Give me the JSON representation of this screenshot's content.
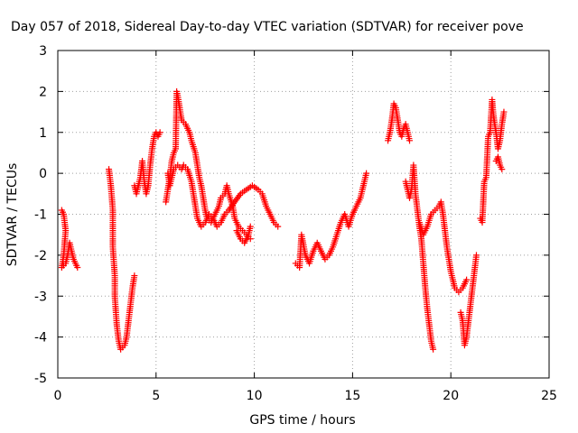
{
  "chart_data": {
    "type": "scatter",
    "title": "Day 057 of 2018, Sidereal Day-to-day VTEC variation (SDTVAR) for receiver pove",
    "xlabel": "GPS time / hours",
    "ylabel": "SDTVAR / TECUs",
    "xlim": [
      0,
      25
    ],
    "ylim": [
      -5,
      3
    ],
    "xticks": [
      0,
      5,
      10,
      15,
      20,
      25
    ],
    "yticks": [
      -5,
      -4,
      -3,
      -2,
      -1,
      0,
      1,
      2,
      3
    ],
    "grid": true,
    "marker": "+",
    "marker_color": "#ff0000",
    "segments": [
      [
        [
          0.2,
          -0.9
        ],
        [
          0.3,
          -1.0
        ],
        [
          0.4,
          -1.4
        ],
        [
          0.3,
          -2.0
        ],
        [
          0.2,
          -2.3
        ],
        [
          0.4,
          -2.2
        ],
        [
          0.5,
          -2.0
        ],
        [
          0.6,
          -1.7
        ],
        [
          0.7,
          -1.9
        ],
        [
          0.8,
          -2.1
        ],
        [
          0.9,
          -2.2
        ],
        [
          1.0,
          -2.3
        ]
      ],
      [
        [
          2.6,
          0.1
        ],
        [
          2.7,
          -0.3
        ],
        [
          2.8,
          -0.9
        ],
        [
          2.8,
          -1.8
        ],
        [
          2.9,
          -2.5
        ],
        [
          2.9,
          -3.0
        ],
        [
          3.0,
          -3.7
        ],
        [
          3.1,
          -4.1
        ],
        [
          3.2,
          -4.3
        ],
        [
          3.4,
          -4.2
        ],
        [
          3.5,
          -4.0
        ],
        [
          3.6,
          -3.6
        ],
        [
          3.7,
          -3.2
        ],
        [
          3.8,
          -2.8
        ],
        [
          3.9,
          -2.5
        ]
      ],
      [
        [
          3.9,
          -0.3
        ],
        [
          4.0,
          -0.5
        ],
        [
          4.1,
          -0.3
        ],
        [
          4.2,
          -0.1
        ],
        [
          4.3,
          0.3
        ],
        [
          4.4,
          -0.2
        ],
        [
          4.5,
          -0.5
        ],
        [
          4.6,
          -0.3
        ],
        [
          4.7,
          0.2
        ],
        [
          4.8,
          0.6
        ],
        [
          4.9,
          0.9
        ],
        [
          5.0,
          1.0
        ],
        [
          5.1,
          0.9
        ],
        [
          5.2,
          1.0
        ]
      ],
      [
        [
          5.5,
          -0.7
        ],
        [
          5.6,
          -0.4
        ],
        [
          5.7,
          -0.1
        ],
        [
          5.8,
          0.3
        ],
        [
          5.9,
          0.5
        ],
        [
          6.0,
          0.6
        ],
        [
          6.05,
          2.0
        ],
        [
          6.1,
          1.9
        ],
        [
          6.2,
          1.6
        ],
        [
          6.3,
          1.3
        ],
        [
          6.5,
          1.2
        ],
        [
          6.7,
          1.0
        ],
        [
          6.8,
          0.8
        ],
        [
          7.0,
          0.5
        ],
        [
          7.1,
          0.2
        ],
        [
          7.2,
          -0.1
        ],
        [
          7.3,
          -0.3
        ],
        [
          7.4,
          -0.6
        ],
        [
          7.5,
          -0.9
        ],
        [
          7.6,
          -1.1
        ],
        [
          7.8,
          -1.2
        ],
        [
          8.0,
          -1.0
        ],
        [
          8.2,
          -0.8
        ],
        [
          8.3,
          -0.6
        ],
        [
          8.5,
          -0.5
        ],
        [
          8.6,
          -0.3
        ],
        [
          8.7,
          -0.5
        ],
        [
          8.9,
          -0.8
        ],
        [
          9.0,
          -1.1
        ],
        [
          9.2,
          -1.3
        ],
        [
          9.4,
          -1.4
        ],
        [
          9.6,
          -1.5
        ],
        [
          9.8,
          -1.6
        ]
      ],
      [
        [
          5.6,
          0.0
        ],
        [
          5.7,
          -0.3
        ],
        [
          5.8,
          -0.1
        ],
        [
          5.9,
          0.1
        ],
        [
          6.1,
          0.2
        ],
        [
          6.3,
          0.1
        ],
        [
          6.4,
          0.2
        ],
        [
          6.6,
          0.1
        ],
        [
          6.8,
          -0.2
        ],
        [
          6.9,
          -0.5
        ],
        [
          7.0,
          -0.8
        ],
        [
          7.1,
          -1.1
        ],
        [
          7.3,
          -1.3
        ],
        [
          7.5,
          -1.2
        ],
        [
          7.7,
          -1.0
        ],
        [
          7.9,
          -1.1
        ],
        [
          8.1,
          -1.3
        ],
        [
          8.3,
          -1.2
        ],
        [
          8.5,
          -1.0
        ],
        [
          8.7,
          -0.9
        ],
        [
          9.0,
          -0.7
        ],
        [
          9.3,
          -0.5
        ],
        [
          9.6,
          -0.4
        ],
        [
          9.9,
          -0.3
        ],
        [
          10.2,
          -0.4
        ],
        [
          10.4,
          -0.5
        ],
        [
          10.6,
          -0.8
        ],
        [
          10.8,
          -1.0
        ],
        [
          11.0,
          -1.2
        ],
        [
          11.2,
          -1.3
        ]
      ],
      [
        [
          9.1,
          -1.4
        ],
        [
          9.3,
          -1.6
        ],
        [
          9.5,
          -1.7
        ],
        [
          9.7,
          -1.5
        ],
        [
          9.8,
          -1.3
        ]
      ],
      [
        [
          12.1,
          -2.2
        ],
        [
          12.3,
          -2.3
        ],
        [
          12.4,
          -1.5
        ],
        [
          12.6,
          -2.0
        ],
        [
          12.8,
          -2.2
        ],
        [
          13.0,
          -1.9
        ],
        [
          13.2,
          -1.7
        ],
        [
          13.4,
          -1.9
        ],
        [
          13.6,
          -2.1
        ],
        [
          13.8,
          -2.0
        ],
        [
          14.0,
          -1.8
        ],
        [
          14.2,
          -1.5
        ],
        [
          14.4,
          -1.2
        ],
        [
          14.6,
          -1.0
        ],
        [
          14.8,
          -1.3
        ],
        [
          15.0,
          -1.0
        ],
        [
          15.2,
          -0.8
        ],
        [
          15.4,
          -0.6
        ],
        [
          15.6,
          -0.2
        ],
        [
          15.7,
          0.0
        ]
      ],
      [
        [
          16.8,
          0.8
        ],
        [
          16.9,
          1.0
        ],
        [
          17.0,
          1.3
        ],
        [
          17.1,
          1.7
        ],
        [
          17.2,
          1.6
        ],
        [
          17.4,
          1.0
        ],
        [
          17.5,
          0.9
        ],
        [
          17.6,
          1.1
        ],
        [
          17.7,
          1.2
        ],
        [
          17.8,
          1.0
        ],
        [
          17.9,
          0.8
        ]
      ],
      [
        [
          17.7,
          -0.2
        ],
        [
          17.8,
          -0.4
        ],
        [
          17.9,
          -0.6
        ],
        [
          18.0,
          -0.4
        ],
        [
          18.1,
          0.2
        ],
        [
          18.2,
          -0.5
        ],
        [
          18.3,
          -0.9
        ],
        [
          18.4,
          -1.3
        ],
        [
          18.5,
          -1.6
        ],
        [
          18.6,
          -2.2
        ],
        [
          18.7,
          -2.8
        ],
        [
          18.8,
          -3.3
        ],
        [
          18.9,
          -3.7
        ],
        [
          19.0,
          -4.1
        ],
        [
          19.1,
          -4.3
        ]
      ],
      [
        [
          18.4,
          -1.2
        ],
        [
          18.6,
          -1.5
        ],
        [
          18.8,
          -1.3
        ],
        [
          19.0,
          -1.0
        ],
        [
          19.2,
          -0.9
        ],
        [
          19.4,
          -0.8
        ],
        [
          19.5,
          -0.7
        ],
        [
          19.6,
          -1.0
        ],
        [
          19.7,
          -1.4
        ],
        [
          19.8,
          -1.8
        ],
        [
          19.9,
          -2.1
        ],
        [
          20.0,
          -2.4
        ],
        [
          20.1,
          -2.6
        ],
        [
          20.2,
          -2.8
        ],
        [
          20.4,
          -2.9
        ],
        [
          20.6,
          -2.8
        ],
        [
          20.8,
          -2.6
        ]
      ],
      [
        [
          20.5,
          -3.4
        ],
        [
          20.6,
          -3.6
        ],
        [
          20.7,
          -4.2
        ],
        [
          20.8,
          -4.0
        ],
        [
          20.9,
          -3.6
        ],
        [
          21.0,
          -3.2
        ],
        [
          21.1,
          -2.8
        ],
        [
          21.2,
          -2.4
        ],
        [
          21.3,
          -2.0
        ]
      ],
      [
        [
          21.5,
          -1.1
        ],
        [
          21.6,
          -1.2
        ],
        [
          21.7,
          -0.2
        ],
        [
          21.8,
          -0.1
        ],
        [
          21.9,
          0.9
        ],
        [
          22.0,
          1.0
        ],
        [
          22.1,
          1.8
        ],
        [
          22.15,
          1.5
        ],
        [
          22.2,
          1.3
        ],
        [
          22.3,
          1.0
        ],
        [
          22.4,
          0.6
        ],
        [
          22.5,
          0.8
        ],
        [
          22.6,
          1.2
        ],
        [
          22.7,
          1.5
        ]
      ],
      [
        [
          22.3,
          0.3
        ],
        [
          22.4,
          0.4
        ],
        [
          22.5,
          0.2
        ],
        [
          22.6,
          0.1
        ]
      ]
    ]
  }
}
